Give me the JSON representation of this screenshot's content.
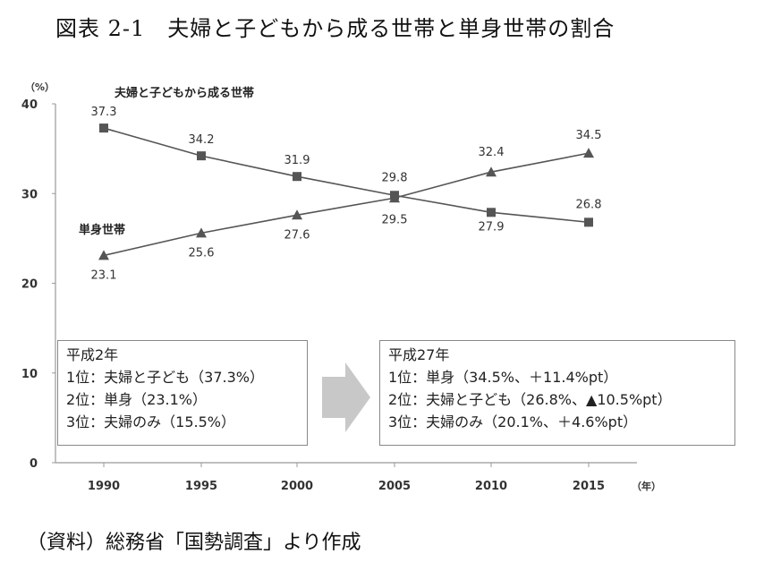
{
  "figure_title": "図表 2-1　夫婦と子どもから成る世帯と単身世帯の割合",
  "source_note": "（資料）総務省「国勢調査」より作成",
  "chart_data": {
    "type": "line",
    "x": [
      1990,
      1995,
      2000,
      2005,
      2010,
      2015
    ],
    "y_unit_label": "（%）",
    "x_unit_label": "（年）",
    "ylim": [
      0,
      40
    ],
    "yticks": [
      0,
      10,
      20,
      30,
      40
    ],
    "grid": false,
    "legend": "none",
    "series": [
      {
        "name": "夫婦と子どもから成る世帯",
        "marker": "square",
        "color": "#555555",
        "values": [
          37.3,
          34.2,
          31.9,
          29.8,
          27.9,
          26.8
        ],
        "labels": [
          "37.3",
          "34.2",
          "31.9",
          "29.8",
          "27.9",
          "26.8"
        ]
      },
      {
        "name": "単身世帯",
        "marker": "triangle",
        "color": "#555555",
        "values": [
          23.1,
          25.6,
          27.6,
          29.5,
          32.4,
          34.5
        ],
        "labels": [
          "23.1",
          "25.6",
          "27.6",
          "29.5",
          "32.4",
          "34.5"
        ]
      }
    ]
  },
  "annotation_left": {
    "heading": "平成2年",
    "lines": [
      "1位：夫婦と子ども（37.3%）",
      "2位：単身（23.1%）",
      "3位：夫婦のみ（15.5%）"
    ]
  },
  "annotation_right": {
    "heading": "平成27年",
    "lines": [
      "1位：単身（34.5%、＋11.4%pt）",
      "2位：夫婦と子ども（26.8%、▲10.5%pt）",
      "3位：夫婦のみ（20.1%、＋4.6%pt）"
    ]
  },
  "arrow_color": "#c8c8c8"
}
